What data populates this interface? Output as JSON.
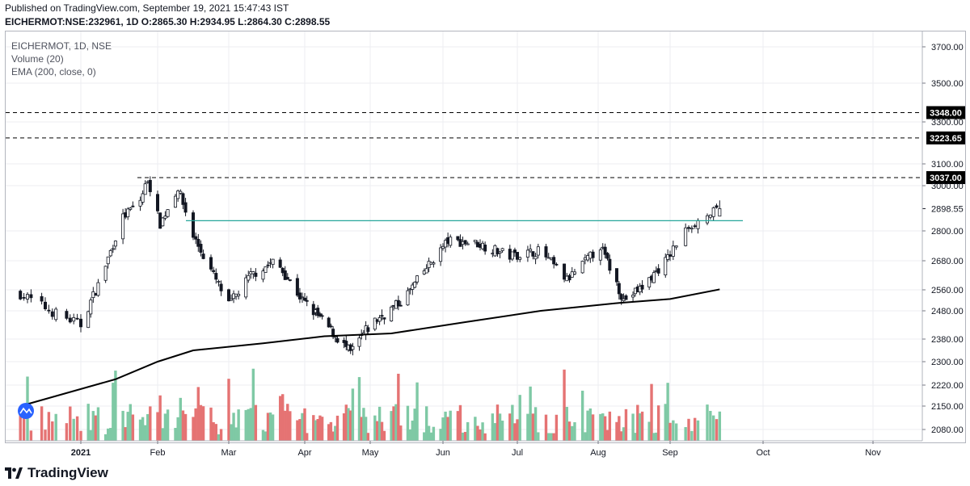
{
  "header": {
    "published": "Published on TradingView.com, September 19, 2021 15:47:43 IST",
    "symbol_line": "EICHERMOT:NSE:232961, 1D O:2865.30 H:2934.95 L:2864.30 C:2898.55"
  },
  "legend": {
    "symbol": "EICHERMOT, 1D, NSE",
    "volume": "Volume (20)",
    "ema": "EMA (200, close, 0)"
  },
  "footer": {
    "brand": "TradingView"
  },
  "colors": {
    "up": "#26a69a",
    "down": "#ef5350",
    "vol_up": "#7fc9a5",
    "vol_down": "#e57373",
    "ema": "#000000",
    "resistance": "#26a69a",
    "hline": "#000000",
    "grid": "#eceef2"
  },
  "chart_data": {
    "type": "candlestick",
    "title": "EICHERMOT, 1D, NSE",
    "ohlc_last": {
      "open": 2865.3,
      "high": 2934.95,
      "low": 2864.3,
      "close": 2898.55
    },
    "y_ticks": [
      "3700.00",
      "3500.00",
      "3300.00",
      "3100.00",
      "3000.00",
      "2800.00",
      "2680.00",
      "2560.00",
      "2480.00",
      "2380.00",
      "2300.00",
      "2220.00",
      "2150.00",
      "2080.00"
    ],
    "x_ticks": [
      "2021",
      "Feb",
      "Mar",
      "Apr",
      "May",
      "Jun",
      "Jul",
      "Aug",
      "Sep",
      "Oct",
      "Nov"
    ],
    "horizontal_levels": [
      {
        "label": "3348.00",
        "value": 3348.0
      },
      {
        "label": "3223.65",
        "value": 3223.65
      },
      {
        "label": "3037.00",
        "value": 3037.0
      }
    ],
    "last_price_label": "2898.55",
    "resistance_level": 2845,
    "close_series": [
      {
        "x": "2020-12-15",
        "close": 2545
      },
      {
        "x": "2020-12-25",
        "close": 2470
      },
      {
        "x": "2021-01-01",
        "close": 2430
      },
      {
        "x": "2021-01-08",
        "close": 2580
      },
      {
        "x": "2021-01-12",
        "close": 2690
      },
      {
        "x": "2021-01-18",
        "close": 2860
      },
      {
        "x": "2021-01-25",
        "close": 2935
      },
      {
        "x": "2021-01-28",
        "close": 3030
      },
      {
        "x": "2021-02-02",
        "close": 2830
      },
      {
        "x": "2021-02-09",
        "close": 2990
      },
      {
        "x": "2021-02-15",
        "close": 2780
      },
      {
        "x": "2021-02-23",
        "close": 2620
      },
      {
        "x": "2021-03-01",
        "close": 2500
      },
      {
        "x": "2021-03-10",
        "close": 2620
      },
      {
        "x": "2021-03-20",
        "close": 2680
      },
      {
        "x": "2021-03-31",
        "close": 2520
      },
      {
        "x": "2021-04-12",
        "close": 2420
      },
      {
        "x": "2021-04-22",
        "close": 2330
      },
      {
        "x": "2021-05-01",
        "close": 2430
      },
      {
        "x": "2021-05-15",
        "close": 2520
      },
      {
        "x": "2021-05-25",
        "close": 2650
      },
      {
        "x": "2021-06-03",
        "close": 2760
      },
      {
        "x": "2021-06-15",
        "close": 2750
      },
      {
        "x": "2021-06-28",
        "close": 2700
      },
      {
        "x": "2021-07-10",
        "close": 2720
      },
      {
        "x": "2021-07-20",
        "close": 2600
      },
      {
        "x": "2021-08-02",
        "close": 2740
      },
      {
        "x": "2021-08-12",
        "close": 2520
      },
      {
        "x": "2021-08-20",
        "close": 2570
      },
      {
        "x": "2021-08-31",
        "close": 2690
      },
      {
        "x": "2021-09-07",
        "close": 2820
      },
      {
        "x": "2021-09-17",
        "close": 2898.55
      }
    ],
    "ema_series": [
      {
        "x": "2020-12-15",
        "value": 2150
      },
      {
        "x": "2021-01-15",
        "value": 2240
      },
      {
        "x": "2021-02-01",
        "value": 2300
      },
      {
        "x": "2021-02-15",
        "value": 2340
      },
      {
        "x": "2021-03-15",
        "value": 2365
      },
      {
        "x": "2021-04-10",
        "value": 2390
      },
      {
        "x": "2021-05-10",
        "value": 2400
      },
      {
        "x": "2021-06-10",
        "value": 2440
      },
      {
        "x": "2021-07-10",
        "value": 2480
      },
      {
        "x": "2021-08-10",
        "value": 2510
      },
      {
        "x": "2021-09-01",
        "value": 2525
      },
      {
        "x": "2021-09-17",
        "value": 2562
      }
    ]
  }
}
